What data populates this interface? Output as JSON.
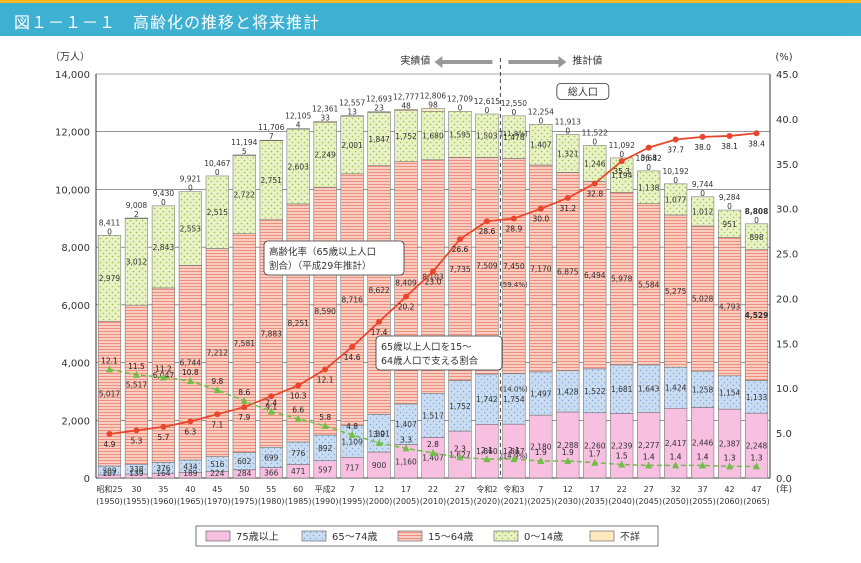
{
  "header": {
    "title": "図１－１－１　高齢化の推移と将来推計"
  },
  "chart_data": {
    "type": "bar",
    "stacked": true,
    "y_left_label": "（万人）",
    "y_right_label": "(%)",
    "x_unit": "(年)",
    "ylim_left": [
      0,
      14000
    ],
    "ylim_right": [
      0,
      45.0
    ],
    "y_left_ticks": [
      "0",
      "2,000",
      "4,000",
      "6,000",
      "8,000",
      "10,000",
      "12,000",
      "14,000"
    ],
    "y_right_ticks": [
      "0.0",
      "5.0",
      "10.0",
      "15.0",
      "20.0",
      "25.0",
      "30.0",
      "35.0",
      "40.0",
      "45.0"
    ],
    "categories": [
      "昭和25",
      "30",
      "35",
      "40",
      "45",
      "50",
      "55",
      "60",
      "平成2",
      "7",
      "12",
      "17",
      "22",
      "27",
      "令和2",
      "令和3",
      "7",
      "12",
      "17",
      "22",
      "27",
      "32",
      "37",
      "42",
      "47"
    ],
    "years": [
      "(1950)",
      "(1955)",
      "(1960)",
      "(1965)",
      "(1970)",
      "(1975)",
      "(1980)",
      "(1985)",
      "(1990)",
      "(1995)",
      "(2000)",
      "(2005)",
      "(2010)",
      "(2015)",
      "(2020)",
      "(2021)",
      "(2025)",
      "(2030)",
      "(2035)",
      "(2040)",
      "(2045)",
      "(2050)",
      "(2055)",
      "(2060)",
      "(2065)"
    ],
    "series": [
      {
        "name": "75歳以上",
        "color": "#f7bfe0",
        "values": [
          107,
          139,
          164,
          189,
          224,
          284,
          366,
          471,
          597,
          717,
          900,
          1160,
          1407,
          1627,
          1860,
          1867,
          2180,
          2288,
          2260,
          2239,
          2277,
          2417,
          2446,
          2387,
          2248
        ]
      },
      {
        "name": "65～74歳",
        "color": "#b9d3ef",
        "values": [
          309,
          338,
          376,
          434,
          516,
          602,
          699,
          776,
          892,
          1109,
          1301,
          1407,
          1517,
          1752,
          1742,
          1754,
          1497,
          1428,
          1522,
          1681,
          1643,
          1424,
          1258,
          1154,
          1133
        ]
      },
      {
        "name": "15～64歳",
        "color": "#f6b3a6",
        "values": [
          5017,
          5517,
          6047,
          6744,
          7212,
          7581,
          7883,
          8251,
          8590,
          8716,
          8622,
          8409,
          8103,
          7735,
          7509,
          7450,
          7170,
          6875,
          6494,
          5978,
          5584,
          5275,
          5028,
          4793,
          4529
        ]
      },
      {
        "name": "0～14歳",
        "color": "#e2edbb",
        "values": [
          2979,
          3012,
          2843,
          2553,
          2515,
          2722,
          2751,
          2603,
          2249,
          2001,
          1847,
          1752,
          1680,
          1595,
          1503,
          1478,
          1407,
          1321,
          1246,
          1194,
          1138,
          1077,
          1012,
          951,
          898
        ]
      },
      {
        "name": "不詳",
        "color": "#fbe2b0",
        "values": [
          0,
          2,
          0,
          0,
          0,
          5,
          7,
          4,
          33,
          13,
          23,
          48,
          98,
          0,
          0,
          0,
          0,
          0,
          0,
          0,
          0,
          0,
          0,
          0,
          0
        ]
      }
    ],
    "gap_labels": [
      "",
      "",
      "35",
      "",
      "",
      "",
      "",
      "",
      "",
      "",
      "",
      "",
      "",
      "",
      "",
      "",
      "",
      "",
      "",
      "",
      "",
      "",
      "",
      "",
      ""
    ],
    "totals": [
      "8,411",
      "9,008",
      "9,430",
      "9,921",
      "10,467",
      "11,194",
      "11,706",
      "12,105",
      "12,361",
      "12,557",
      "12,693",
      "12,777",
      "12,806",
      "12,709",
      "12,615",
      "12,550",
      "12,254",
      "11,913",
      "11,522",
      "11,092",
      "10,642",
      "10,192",
      "9,744",
      "9,284",
      "8,808"
    ],
    "bold_labels": {
      "total_index": 24,
      "value": "4,529"
    },
    "annotations_pct": [
      "",
      "",
      "",
      "",
      "",
      "",
      "",
      "",
      "",
      "",
      "",
      "",
      "",
      "",
      "",
      "(14.0%)",
      "",
      "",
      "",
      "",
      "",
      "",
      "",
      "",
      ""
    ],
    "annotations_wa": [
      "",
      "",
      "",
      "",
      "",
      "",
      "",
      "",
      "",
      "",
      "",
      "",
      "",
      "",
      "",
      "(59.4%)",
      "",
      "",
      "",
      "",
      "",
      "",
      "",
      "",
      ""
    ],
    "annotations_kid": [
      "",
      "",
      "",
      "",
      "",
      "",
      "",
      "",
      "",
      "",
      "",
      "",
      "",
      "",
      "",
      "(11.8%)",
      "",
      "",
      "",
      "",
      "",
      "",
      "",
      "",
      ""
    ],
    "annotations_75": [
      "",
      "",
      "",
      "",
      "",
      "",
      "",
      "",
      "",
      "",
      "",
      "",
      "",
      "",
      "",
      "(14.9%)",
      "",
      "",
      "",
      "",
      "",
      "",
      "",
      "",
      ""
    ],
    "aging_rate": {
      "name": "高齢化率",
      "color": "#e8472e",
      "values": [
        4.9,
        5.3,
        5.7,
        6.3,
        7.1,
        7.9,
        9.1,
        10.3,
        12.1,
        14.6,
        17.4,
        20.2,
        23.0,
        26.6,
        28.6,
        28.9,
        30.0,
        31.2,
        32.8,
        35.3,
        36.8,
        37.7,
        38.0,
        38.1,
        38.4
      ]
    },
    "support_ratio": {
      "name": "15～64歳人口で支える割合",
      "color": "#6fbf44",
      "values": [
        12.1,
        11.5,
        11.2,
        10.8,
        9.8,
        8.6,
        7.4,
        6.6,
        5.8,
        4.8,
        3.9,
        3.3,
        2.8,
        2.3,
        2.1,
        2.1,
        1.9,
        1.9,
        1.7,
        1.5,
        1.4,
        1.4,
        1.4,
        1.3,
        1.3
      ]
    },
    "callouts": {
      "total_pop": "総人口",
      "aging_line1": "高齢化率（65歳以上人口",
      "aging_line2": "割合）（平成29年推計）",
      "support_line1": "65歳以上人口を15～",
      "support_line2": "64歳人口で支える割合"
    },
    "region_labels": {
      "actual": "実績値",
      "projected": "推計値"
    },
    "legend": [
      "75歳以上",
      "65～74歳",
      "15～64歳",
      "0～14歳",
      "不詳"
    ],
    "grid": true
  }
}
